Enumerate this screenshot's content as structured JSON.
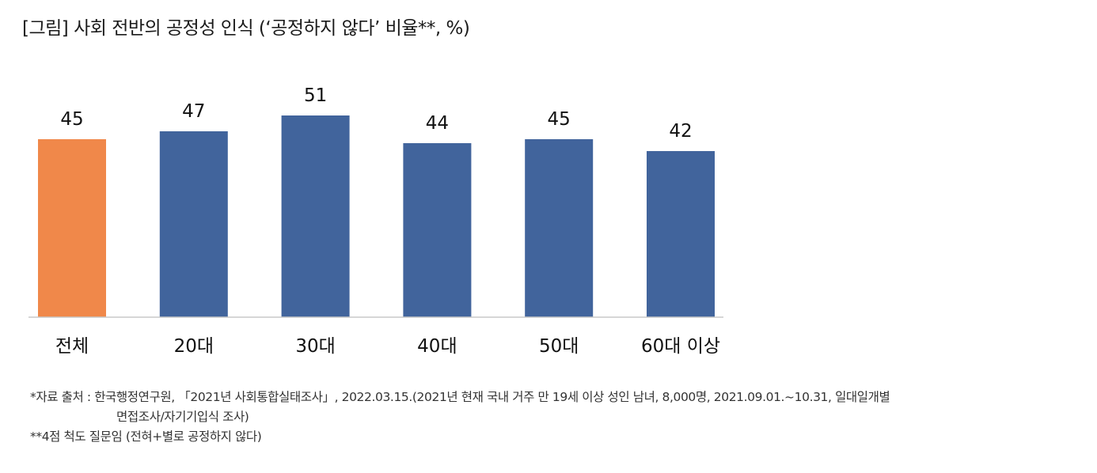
{
  "title": "[그림] 사회 전반의 공정성 인식 (‘공정하지 않다’ 비율**, %)",
  "colors": {
    "highlight": "#F0884A",
    "default": "#41649C",
    "axis": "#c8c8c8"
  },
  "chart_data": {
    "type": "bar",
    "title": "[그림] 사회 전반의 공정성 인식 (‘공정하지 않다’ 비율**, %)",
    "categories": [
      "전체",
      "20대",
      "30대",
      "40대",
      "50대",
      "60대 이상"
    ],
    "values": [
      45,
      47,
      51,
      44,
      45,
      42
    ],
    "highlight_index": 0,
    "data_labels": true,
    "grid": false,
    "legend": false,
    "xlabel": "",
    "ylabel": ""
  },
  "notes": {
    "source_line1": "*자료 출처 : 한국행정연구원, 「2021년 사회통합실태조사」, 2022.03.15.(2021년 현재 국내 거주 만 19세 이상 성인 남녀, 8,000명, 2021.09.01.~10.31, 일대일개별",
    "source_line2": "면접조사/자기기입식 조사)",
    "footnote": "**4점 척도 질문임 (전혀+별로 공정하지 않다)"
  }
}
